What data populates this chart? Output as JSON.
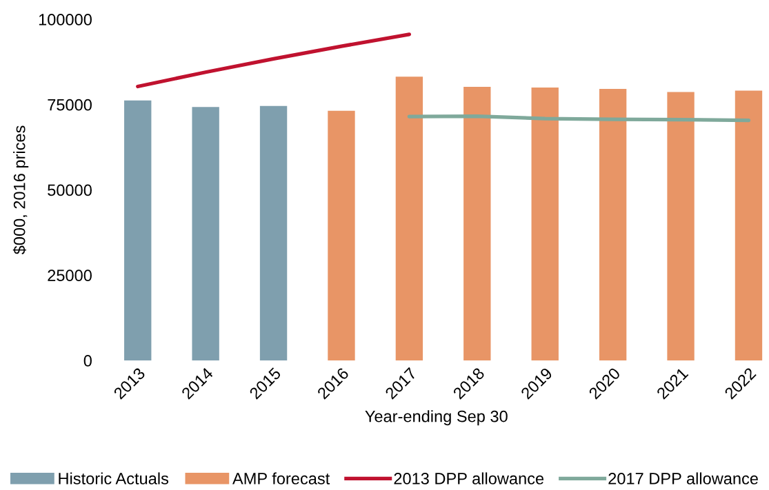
{
  "chart_data": {
    "type": "bar",
    "categories": [
      "2013",
      "2014",
      "2015",
      "2016",
      "2017",
      "2018",
      "2019",
      "2020",
      "2021",
      "2022"
    ],
    "series": [
      {
        "name": "Historic Actuals",
        "color": "#7f9fae",
        "values": [
          76200,
          74300,
          74600,
          null,
          null,
          null,
          null,
          null,
          null,
          null
        ]
      },
      {
        "name": "AMP forecast",
        "color": "#e89566",
        "values": [
          null,
          null,
          null,
          73200,
          83200,
          80200,
          80000,
          79600,
          78700,
          79100
        ]
      },
      {
        "name": "2013 DPP allowance",
        "type": "line",
        "color": "#c0122f",
        "values": [
          80300,
          84500,
          88400,
          92100,
          95600,
          null,
          null,
          null,
          null,
          null
        ]
      },
      {
        "name": "2017 DPP allowance",
        "type": "line",
        "color": "#7fa99b",
        "values": [
          null,
          null,
          null,
          null,
          71500,
          71600,
          70900,
          70700,
          70600,
          70400
        ]
      }
    ],
    "xlabel": "Year-ending Sep 30",
    "ylabel": "$000, 2016 prices",
    "ylim": [
      0,
      100000
    ],
    "yticks": [
      0,
      25000,
      50000,
      75000,
      100000
    ],
    "grid": false,
    "legend": "bottom"
  }
}
